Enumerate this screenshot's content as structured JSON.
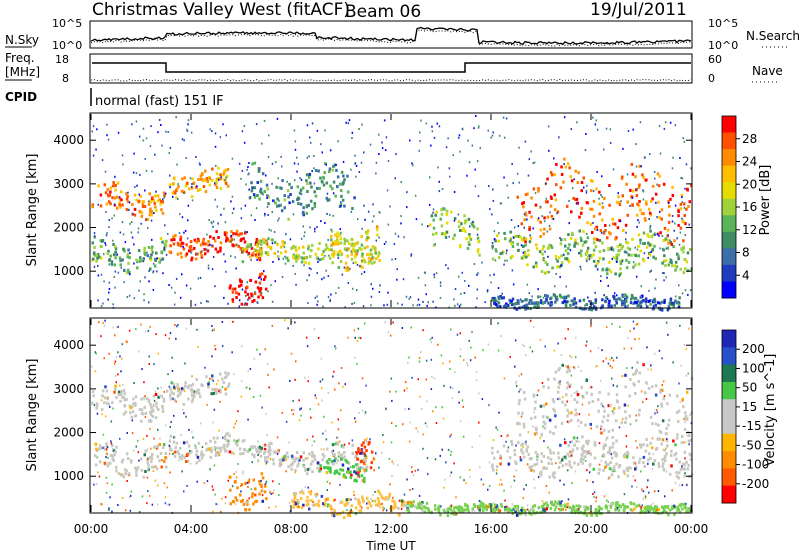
{
  "header": {
    "station": "Christmas Valley West (fitACF)",
    "beam": "Beam 06",
    "date": "19/Jul/2011"
  },
  "noise_panel": {
    "left_label": "N.Sky",
    "left_ticks": [
      "10^5",
      "10^0"
    ],
    "right_label": "N.Search",
    "right_ticks": [
      "10^5",
      "10^0"
    ]
  },
  "freq_panel": {
    "left_label_1": "Freq.",
    "left_label_2": "[MHz]",
    "left_ticks": [
      "18",
      "8"
    ],
    "right_label": "Nave",
    "right_ticks": [
      "60",
      "0"
    ]
  },
  "cpid": {
    "label": "CPID",
    "text": "normal (fast) 151 IF"
  },
  "chart_data": [
    {
      "type": "heatmap",
      "name": "power",
      "ylabel": "Slant Range [km]",
      "xlabel": "Time UT",
      "xlim": [
        0,
        24
      ],
      "ylim": [
        180,
        4600
      ],
      "yticks": [
        1000,
        2000,
        3000,
        4000
      ],
      "xticks": [
        "00:00",
        "04:00",
        "08:00",
        "12:00",
        "16:00",
        "20:00",
        "00:00"
      ],
      "colorbar": {
        "label": "Power [dB]",
        "ticks": [
          "28",
          "24",
          "20",
          "16",
          "12",
          "8",
          "4"
        ],
        "colors": [
          "#ff0000",
          "#ff5000",
          "#ff8c00",
          "#ffbe00",
          "#e6dc00",
          "#a0d23c",
          "#5ab45a",
          "#3c8c64",
          "#3c6eaa",
          "#1e3cbe",
          "#0000ff"
        ]
      },
      "features": [
        {
          "t0": 0.0,
          "t1": 2.9,
          "r0": 2350,
          "r1": 2950,
          "level": 0.75
        },
        {
          "t0": 0.0,
          "t1": 3.0,
          "r0": 1100,
          "r1": 1700,
          "level": 0.35
        },
        {
          "t0": 3.1,
          "t1": 7.0,
          "r0": 1400,
          "r1": 1900,
          "level": 0.9
        },
        {
          "t0": 3.1,
          "t1": 5.5,
          "r0": 2800,
          "r1": 3300,
          "level": 0.7
        },
        {
          "t0": 5.5,
          "t1": 7.0,
          "r0": 400,
          "r1": 1000,
          "level": 1.0
        },
        {
          "t0": 6.0,
          "t1": 11.5,
          "r0": 1300,
          "r1": 1700,
          "level": 0.5
        },
        {
          "t0": 6.3,
          "t1": 10.5,
          "r0": 2400,
          "r1": 3300,
          "level": 0.25
        },
        {
          "t0": 9.5,
          "t1": 11.5,
          "r0": 1200,
          "r1": 2000,
          "level": 0.55
        },
        {
          "t0": 13.5,
          "t1": 15.5,
          "r0": 1500,
          "r1": 2300,
          "level": 0.4
        },
        {
          "t0": 16.0,
          "t1": 24.0,
          "r0": 1100,
          "r1": 1800,
          "level": 0.4
        },
        {
          "t0": 17.0,
          "t1": 24.0,
          "r0": 1900,
          "r1": 3300,
          "level": 0.8
        },
        {
          "t0": 16.0,
          "t1": 23.5,
          "r0": 200,
          "r1": 450,
          "level": 0.15
        }
      ]
    },
    {
      "type": "heatmap",
      "name": "velocity",
      "ylabel": "Slant Range [km]",
      "xlabel": "Time UT",
      "xlim": [
        0,
        24
      ],
      "ylim": [
        180,
        4600
      ],
      "yticks": [
        1000,
        2000,
        3000,
        4000
      ],
      "xticks": [
        "00:00",
        "04:00",
        "08:00",
        "12:00",
        "16:00",
        "20:00",
        "00:00"
      ],
      "colorbar": {
        "label": "Velocity [m s^-1]",
        "ticks": [
          "200",
          "100",
          "50",
          "15",
          "-15",
          "-50",
          "-100",
          "-200"
        ],
        "colors": [
          "#1e28b4",
          "#2850c8",
          "#1e7850",
          "#46c846",
          "#c8c8c8",
          "#c8c8c8",
          "#ffb400",
          "#ff8c00",
          "#ff5a00",
          "#ff0000"
        ]
      },
      "features": [
        {
          "t0": 0.0,
          "t1": 3.0,
          "r0": 2400,
          "r1": 3000,
          "color": "#c8c8c0"
        },
        {
          "t0": 0.0,
          "t1": 3.0,
          "r0": 1100,
          "r1": 1700,
          "color": "#c8c8c0"
        },
        {
          "t0": 3.1,
          "t1": 7.0,
          "r0": 1450,
          "r1": 1900,
          "color": "#c8c8c0"
        },
        {
          "t0": 3.1,
          "t1": 5.5,
          "r0": 2800,
          "r1": 3300,
          "color": "#c8c8c0"
        },
        {
          "t0": 5.5,
          "t1": 7.0,
          "r0": 400,
          "r1": 1100,
          "color": "#ff8c00"
        },
        {
          "t0": 7.0,
          "t1": 11.0,
          "r0": 1200,
          "r1": 1700,
          "color": "#c8c8c0"
        },
        {
          "t0": 9.0,
          "t1": 11.0,
          "r0": 1000,
          "r1": 1400,
          "color": "#46c846"
        },
        {
          "t0": 10.5,
          "t1": 11.3,
          "r0": 1200,
          "r1": 2000,
          "color": "#ff3c00"
        },
        {
          "t0": 8.0,
          "t1": 12.5,
          "r0": 180,
          "r1": 600,
          "color": "#ffbe3c"
        },
        {
          "t0": 16.0,
          "t1": 24.0,
          "r0": 1100,
          "r1": 1800,
          "color": "#c8c8c0"
        },
        {
          "t0": 17.0,
          "t1": 24.0,
          "r0": 1900,
          "r1": 3300,
          "color": "#c8c8c0"
        },
        {
          "t0": 12.5,
          "t1": 24.0,
          "r0": 180,
          "r1": 400,
          "color": "#78d250"
        }
      ]
    }
  ]
}
